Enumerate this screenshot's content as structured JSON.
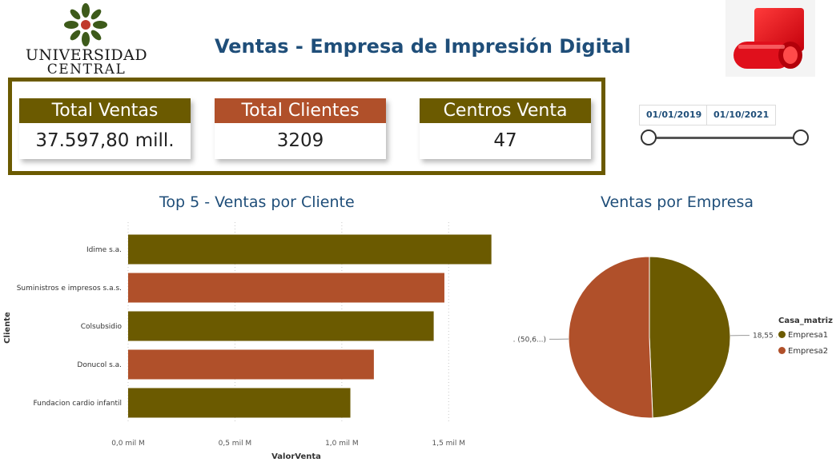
{
  "header": {
    "university_line1": "UNIVERSIDAD",
    "university_line2": "CENTRAL",
    "title": "Ventas - Empresa de Impresión Digital"
  },
  "kpis": [
    {
      "label": "Total Ventas",
      "value": "37.597,80 mill.",
      "color": "#6b5a00"
    },
    {
      "label": "Total Clientes",
      "value": "3209",
      "color": "#b0502a"
    },
    {
      "label": "Centros Venta",
      "value": "47",
      "color": "#6b5a00"
    }
  ],
  "date_slicer": {
    "start": "01/01/2019",
    "end": "01/10/2021"
  },
  "colors": {
    "olive": "#6b5a00",
    "rust": "#b0502a",
    "title_blue": "#1f4e79",
    "frame": "#6b5a00"
  },
  "chart_data": [
    {
      "type": "bar",
      "orientation": "horizontal",
      "title": "Top 5 - Ventas por Cliente",
      "xlabel": "ValorVenta",
      "ylabel": "Cliente",
      "categories": [
        "Idime s.a.",
        "Suministros e impresos s.a.s.",
        "Colsubsidio",
        "Donucol s.a.",
        "Fundacion cardio infantil"
      ],
      "values": [
        1.7,
        1.48,
        1.43,
        1.15,
        1.04
      ],
      "xlim": [
        0,
        1.75
      ],
      "xticks": [
        0,
        0.5,
        1.0,
        1.5
      ],
      "xtick_labels": [
        "0,0 mil M",
        "0,5 mil M",
        "1,0 mil M",
        "1,5 mil M"
      ],
      "bar_colors": [
        "#6b5a00",
        "#b0502a",
        "#6b5a00",
        "#b0502a",
        "#6b5a00"
      ],
      "grid": "vertical dotted"
    },
    {
      "type": "pie",
      "title": "Ventas por Empresa",
      "legend_title": "Casa_matriz",
      "legend_position": "right",
      "slices": [
        {
          "name": "Empresa1",
          "value": 49.3,
          "label": "18,55 ... (49,3...)",
          "color": "#6b5a00"
        },
        {
          "name": "Empresa2",
          "value": 50.6,
          "label": "19,05 ... (50,6...)",
          "color": "#b0502a"
        }
      ]
    }
  ]
}
